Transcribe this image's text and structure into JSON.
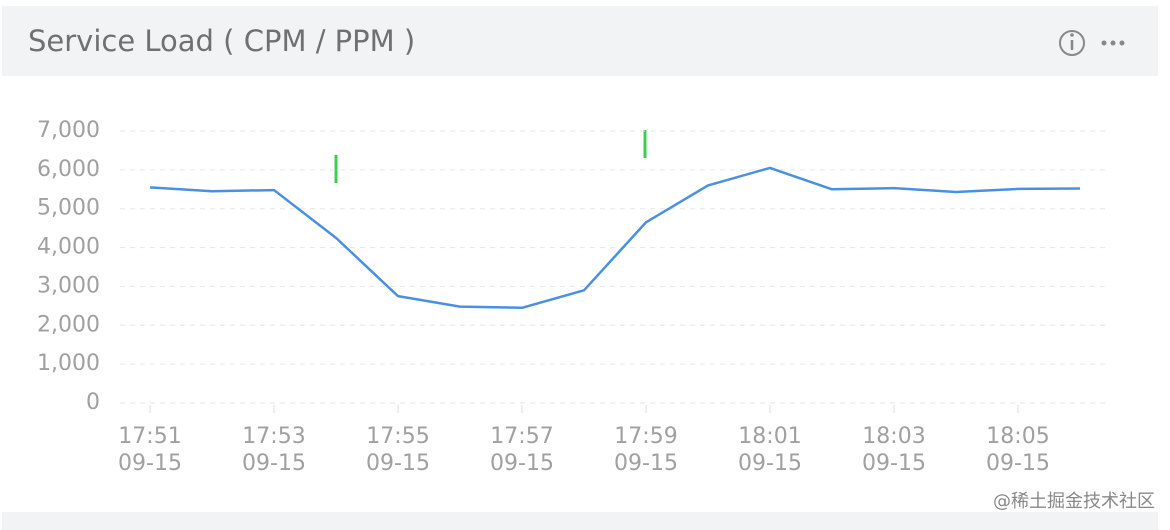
{
  "header": {
    "title": "Service Load ( CPM / PPM )"
  },
  "chart_data": {
    "type": "line",
    "categories": [
      [
        "17:51",
        "09-15"
      ],
      null,
      [
        "17:53",
        "09-15"
      ],
      null,
      [
        "17:55",
        "09-15"
      ],
      null,
      [
        "17:57",
        "09-15"
      ],
      null,
      [
        "17:59",
        "09-15"
      ],
      null,
      [
        "18:01",
        "09-15"
      ],
      null,
      [
        "18:03",
        "09-15"
      ],
      null,
      [
        "18:05",
        "09-15"
      ],
      null
    ],
    "series": [
      {
        "color": "#4a90e2",
        "values": [
          5550,
          5450,
          5480,
          4250,
          2750,
          2480,
          2450,
          2900,
          4650,
          5600,
          6050,
          5500,
          5530,
          5430,
          5510,
          5520
        ]
      }
    ],
    "ylim": [
      0,
      7000
    ],
    "yticks": [
      0,
      {
        "value": 1000,
        "label": "1,000"
      },
      {
        "value": 2000,
        "label": "2,000"
      },
      {
        "value": 3000,
        "label": "3,000"
      },
      {
        "value": 4000,
        "label": "4,000"
      },
      {
        "value": 5000,
        "label": "5,000"
      },
      {
        "value": 6000,
        "label": "6,000"
      },
      {
        "value": 7000,
        "label": "7,000"
      }
    ],
    "grid": true
  },
  "watermark": "@稀土掘金技术社区"
}
